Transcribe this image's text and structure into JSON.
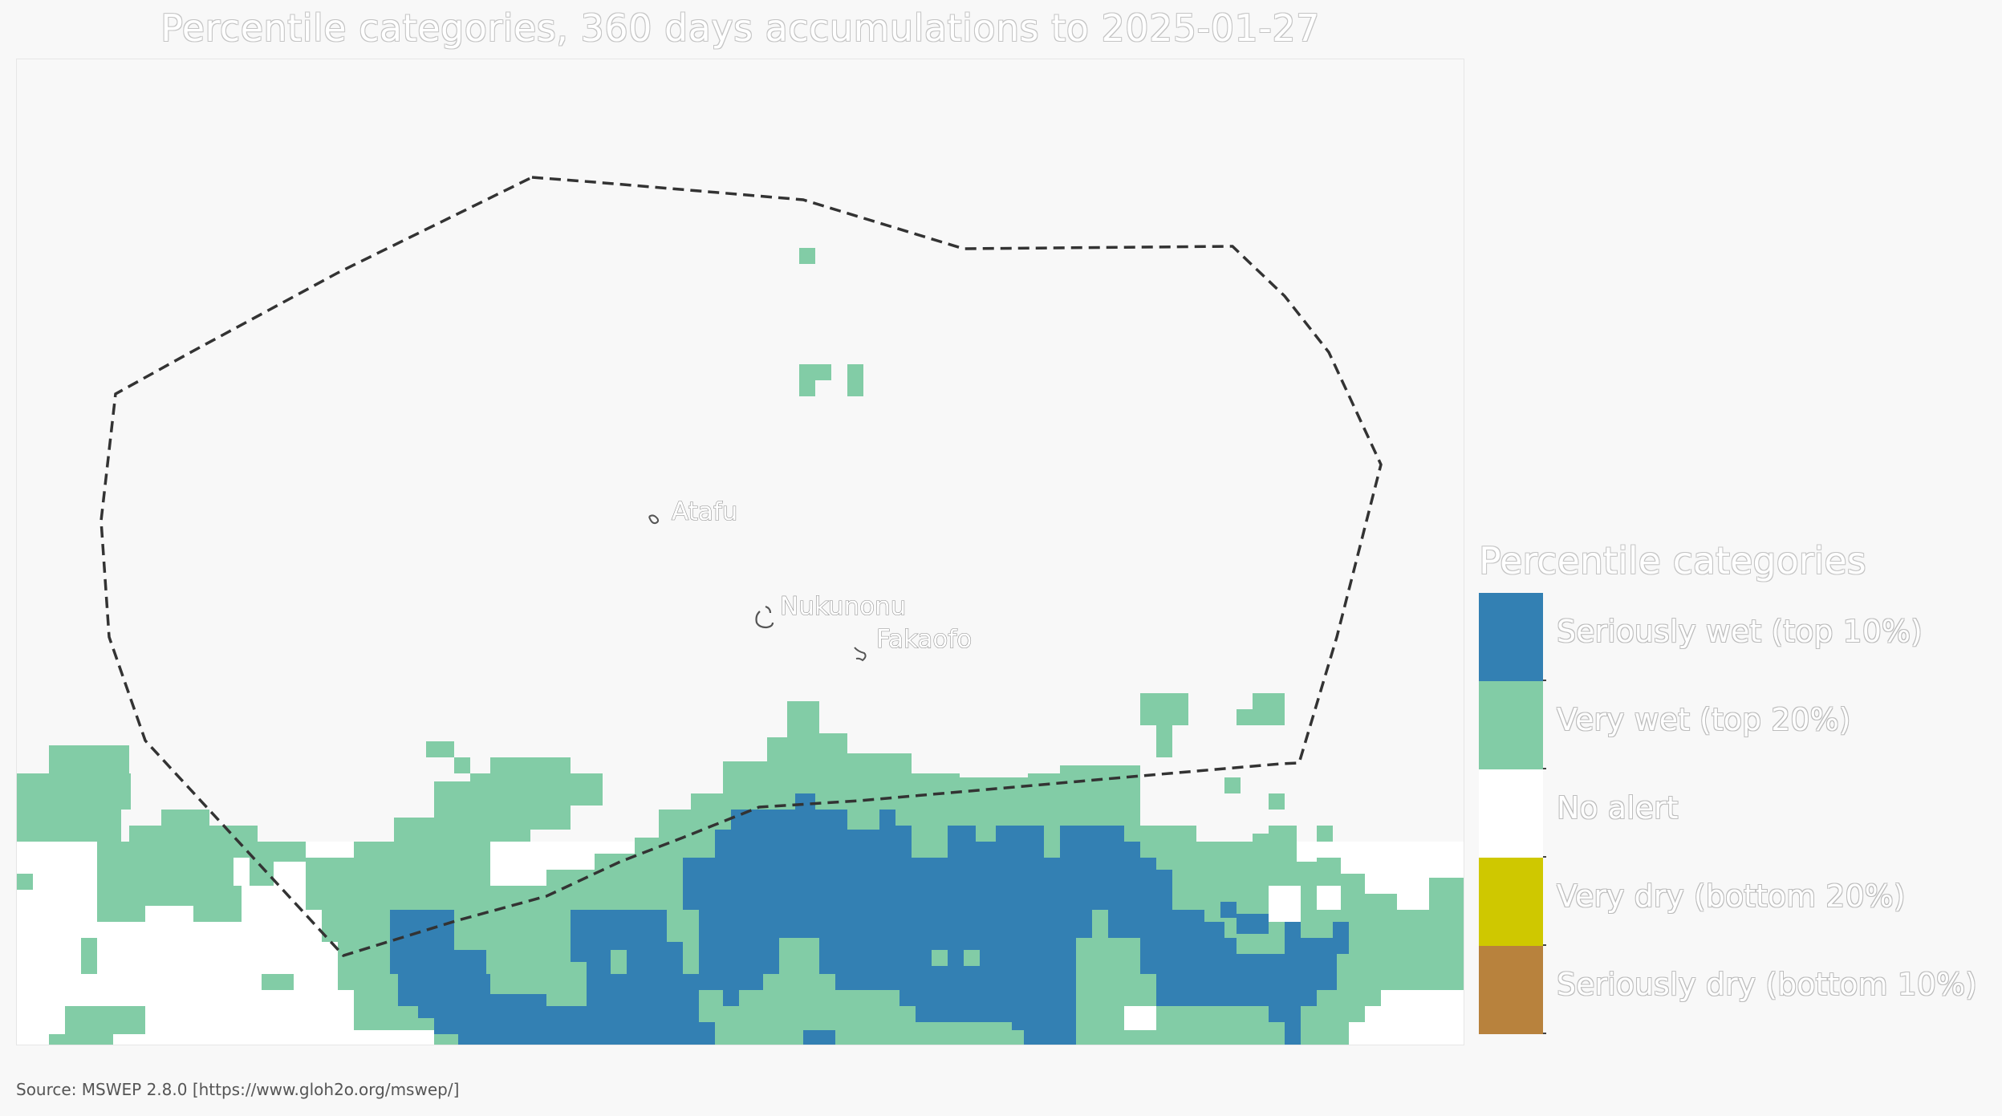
{
  "title": "Percentile categories, 360 days accumulations to 2025-01-27",
  "source": "Source: MSWEP 2.8.0 [https://www.gloh2o.org/mswep/]",
  "legend": {
    "title": "Percentile categories",
    "items": [
      {
        "label": "Seriously wet (top 10%)",
        "color": "#3380b3"
      },
      {
        "label": "Very wet (top 20%)",
        "color": "#82cca6"
      },
      {
        "label": "No alert",
        "color": "#ffffff"
      },
      {
        "label": "Very dry (bottom 20%)",
        "color": "#cfc800"
      },
      {
        "label": "Seriously dry (bottom 10%)",
        "color": "#b8823d"
      }
    ]
  },
  "places": [
    {
      "name": "Atafu"
    },
    {
      "name": "Nukunonu"
    },
    {
      "name": "Fakaofo"
    }
  ],
  "colors": {
    "background": "#f8f8f8",
    "boundary": "#333333",
    "seriously_wet": "#3380b3",
    "very_wet": "#82cca6",
    "no_alert": "#ffffff"
  }
}
